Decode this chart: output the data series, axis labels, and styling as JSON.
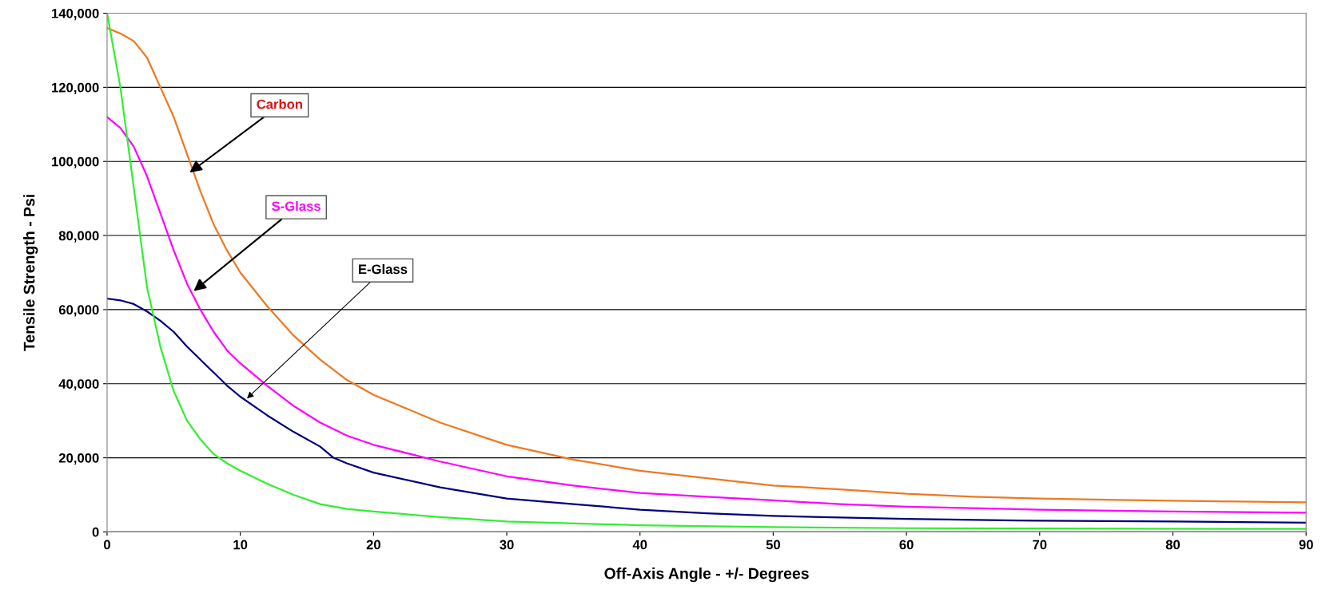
{
  "chart_data": {
    "type": "line",
    "xlabel": "Off-Axis Angle - +/- Degrees",
    "ylabel": "Tensile Strength - Psi",
    "xlim": [
      0,
      90
    ],
    "xticks": [
      0,
      10,
      20,
      30,
      40,
      50,
      60,
      70,
      80,
      90
    ],
    "ylim": [
      0,
      140000
    ],
    "yticks": [
      {
        "value": 0,
        "label": "0"
      },
      {
        "value": 20000,
        "label": "20,000"
      },
      {
        "value": 40000,
        "label": "40,000"
      },
      {
        "value": 60000,
        "label": "60,000"
      },
      {
        "value": 80000,
        "label": "80,000"
      },
      {
        "value": 100000,
        "label": "100,000"
      },
      {
        "value": 120000,
        "label": "120,000"
      },
      {
        "value": 140000,
        "label": "140,000"
      }
    ],
    "grid": "y",
    "marker": "none",
    "line_style": "solid",
    "series": [
      {
        "color": "#f07820",
        "x": [
          0,
          1,
          2,
          3,
          4,
          5,
          6,
          7,
          8,
          9,
          10,
          12,
          14,
          16,
          18,
          20,
          25,
          30,
          35,
          40,
          45,
          50,
          55,
          60,
          65,
          70,
          75,
          80,
          85,
          90
        ],
        "values": [
          136000,
          134500,
          132500,
          128000,
          120000,
          112000,
          102000,
          92000,
          83000,
          76000,
          70000,
          61000,
          53000,
          46500,
          41000,
          37000,
          29500,
          23500,
          19500,
          16500,
          14500,
          12500,
          11500,
          10300,
          9500,
          9000,
          8700,
          8400,
          8200,
          8000
        ]
      },
      {
        "color": "#ff00ff",
        "x": [
          0,
          1,
          2,
          3,
          4,
          5,
          6,
          7,
          8,
          9,
          10,
          12,
          14,
          16,
          18,
          20,
          25,
          30,
          35,
          40,
          45,
          50,
          55,
          60,
          70,
          80,
          90
        ],
        "values": [
          112000,
          109000,
          104000,
          96000,
          86000,
          76000,
          67000,
          60000,
          54000,
          49000,
          45500,
          39500,
          34000,
          29500,
          26000,
          23500,
          19000,
          15000,
          12500,
          10500,
          9500,
          8500,
          7500,
          6800,
          6000,
          5500,
          5200
        ]
      },
      {
        "color": "#000080",
        "x": [
          0,
          1,
          2,
          3,
          4,
          5,
          6,
          7,
          8,
          9,
          10,
          12,
          14,
          16,
          17,
          18,
          20,
          25,
          30,
          35,
          40,
          45,
          50,
          60,
          70,
          80,
          90
        ],
        "values": [
          63000,
          62500,
          61500,
          59500,
          57000,
          54000,
          50000,
          46500,
          43000,
          39500,
          36500,
          31500,
          27000,
          23000,
          20000,
          18500,
          16000,
          12000,
          9000,
          7500,
          6000,
          5000,
          4300,
          3500,
          3000,
          2800,
          2500
        ]
      },
      {
        "color": "#33ee33",
        "x": [
          0,
          1,
          2,
          3,
          4,
          5,
          6,
          7,
          8,
          9,
          10,
          12,
          14,
          16,
          18,
          20,
          25,
          30,
          40,
          50,
          60,
          70,
          90
        ],
        "values": [
          140000,
          120000,
          93000,
          66000,
          50000,
          38000,
          30000,
          25000,
          21000,
          18500,
          16500,
          13000,
          10000,
          7500,
          6200,
          5500,
          4000,
          2800,
          1800,
          1300,
          1000,
          900,
          800
        ]
      }
    ],
    "annotations": [
      {
        "text": "Carbon",
        "x": 6.2,
        "y": 97000
      },
      {
        "text": "S-Glass",
        "x": 6.5,
        "y": 65000
      },
      {
        "text": "E-Glass",
        "x": 10.5,
        "y": 36000
      }
    ]
  }
}
